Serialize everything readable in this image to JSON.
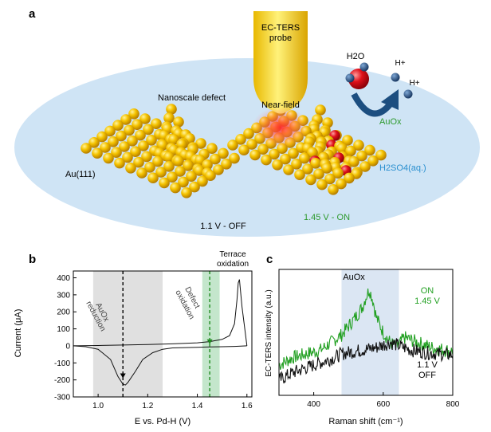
{
  "panel_a": {
    "label": "a",
    "probe_label_line1": "EC-TERS",
    "probe_label_line2": "probe",
    "near_field_label": "Near-field",
    "defect_label": "Nanoscale defect",
    "surface_label": "Au(111)",
    "off_label": "1.1 V - OFF",
    "on_label": "1.45 V - ON",
    "water_label": "H2O",
    "proton_label": "H+",
    "auox_label": "AuOx",
    "electrolyte_label": "H2SO4(aq.)",
    "colors": {
      "gold": "#f2c000",
      "oxygen": "#e0101a",
      "electrolyte": "#cfe4f5",
      "arrow": "#1c4e80",
      "green": "#2e9a2e"
    }
  },
  "panel_b": {
    "label": "b",
    "terrace_label_line1": "Terrace",
    "terrace_label_line2": "oxidation",
    "auox_reduction_line1": "AuOx",
    "auox_reduction_line2": "reduction",
    "defect_oxidation_line1": "Defect",
    "defect_oxidation_line2": "oxidation",
    "chart_data": {
      "type": "line",
      "title": "",
      "xlabel": "E vs. Pd-H (V)",
      "ylabel": "Current (μA)",
      "xlim": [
        0.9,
        1.62
      ],
      "ylim": [
        -300,
        440
      ],
      "x_ticks": [
        1.0,
        1.2,
        1.4,
        1.6
      ],
      "x_tick_labels": [
        "1.0",
        "1.2",
        "1.4",
        "1.6"
      ],
      "y_ticks": [
        -300,
        -200,
        -100,
        0,
        100,
        200,
        300,
        400
      ],
      "y_tick_labels": [
        "-300",
        "-200",
        "-100",
        "0",
        "100",
        "200",
        "300",
        "400"
      ],
      "shaded_regions": [
        {
          "name": "AuOx reduction",
          "x_range": [
            0.98,
            1.26
          ],
          "color": "#e0e0e0"
        },
        {
          "name": "Defect oxidation",
          "x_range": [
            1.42,
            1.49
          ],
          "color": "#c4e6cc"
        }
      ],
      "markers": [
        {
          "name": "1.1 V",
          "x": 1.1,
          "color": "#000000"
        },
        {
          "name": "1.45 V",
          "x": 1.45,
          "color": "#1e8a1e"
        }
      ],
      "series": [
        {
          "name": "forward scan",
          "x": [
            0.9,
            1.0,
            1.1,
            1.2,
            1.3,
            1.4,
            1.45,
            1.5,
            1.53,
            1.55,
            1.56,
            1.565,
            1.57,
            1.58,
            1.6
          ],
          "y": [
            0,
            2,
            5,
            8,
            12,
            18,
            25,
            38,
            60,
            130,
            270,
            370,
            390,
            230,
            0
          ]
        },
        {
          "name": "reverse scan",
          "x": [
            1.6,
            1.55,
            1.5,
            1.45,
            1.4,
            1.3,
            1.26,
            1.22,
            1.18,
            1.15,
            1.12,
            1.11,
            1.1,
            1.08,
            1.05,
            1.0,
            0.95,
            0.9
          ],
          "y": [
            0,
            -3,
            -5,
            -6,
            -8,
            -12,
            -20,
            -40,
            -80,
            -150,
            -215,
            -230,
            -225,
            -180,
            -80,
            -20,
            -5,
            0
          ]
        }
      ]
    }
  },
  "panel_c": {
    "label": "c",
    "auox_label": "AuOx",
    "on_line1": "ON",
    "on_line2": "1.45 V",
    "off_line1": "1.1 V",
    "off_line2": "OFF",
    "chart_data": {
      "type": "line",
      "title": "",
      "xlabel": "Raman shift (cm⁻¹)",
      "ylabel": "EC-TERS intensity (a.u.)",
      "xlim": [
        300,
        800
      ],
      "x_ticks": [
        400,
        600,
        800
      ],
      "x_tick_labels": [
        "400",
        "600",
        "800"
      ],
      "shaded_regions": [
        {
          "name": "AuOx",
          "x_range": [
            480,
            645
          ],
          "color": "#dbe6f3"
        }
      ],
      "series": [
        {
          "name": "ON 1.45 V",
          "color": "#22a022",
          "x": [
            300,
            340,
            380,
            420,
            450,
            480,
            500,
            520,
            540,
            550,
            560,
            570,
            580,
            600,
            620,
            640,
            660,
            700,
            740,
            780,
            800
          ],
          "y": [
            0.24,
            0.3,
            0.33,
            0.36,
            0.42,
            0.48,
            0.55,
            0.62,
            0.7,
            0.78,
            0.84,
            0.76,
            0.62,
            0.5,
            0.42,
            0.38,
            0.46,
            0.42,
            0.38,
            0.36,
            0.35
          ]
        },
        {
          "name": "OFF 1.1 V",
          "color": "#111111",
          "x": [
            300,
            340,
            380,
            420,
            460,
            480,
            500,
            540,
            580,
            600,
            620,
            640,
            680,
            720,
            760,
            800
          ],
          "y": [
            0.12,
            0.18,
            0.22,
            0.26,
            0.3,
            0.33,
            0.34,
            0.36,
            0.38,
            0.4,
            0.42,
            0.4,
            0.36,
            0.34,
            0.33,
            0.32
          ]
        }
      ]
    }
  }
}
